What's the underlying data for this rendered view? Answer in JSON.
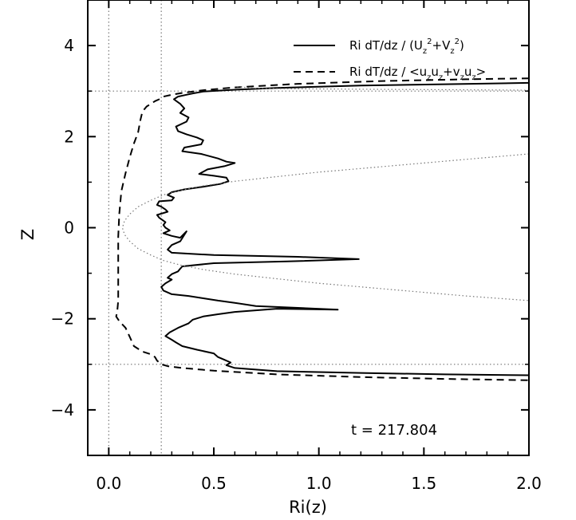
{
  "chart_data": {
    "type": "line",
    "xlabel": "Ri(z)",
    "ylabel": "Z",
    "xlim": [
      -0.1,
      2.0
    ],
    "ylim": [
      -5,
      5
    ],
    "x_ticks": [
      0.0,
      0.5,
      1.0,
      1.5,
      2.0
    ],
    "x_tick_labels": [
      "0.0",
      "0.5",
      "1.0",
      "1.5",
      "2.0"
    ],
    "y_ticks": [
      -4,
      -2,
      0,
      2,
      4
    ],
    "y_tick_labels": [
      "−4",
      "−2",
      "0",
      "2",
      "4"
    ],
    "grid": false,
    "legend_position": "top-right",
    "annotation": "t = 217.804",
    "legend": {
      "solid": {
        "prefix": "Ri dT/dz / (U",
        "mid": "+V",
        "suffix": ")",
        "sub": "z",
        "sup": "2"
      },
      "dashed": {
        "prefix": "Ri dT/dz / <u",
        "p2": "u",
        "p3": "+v",
        "p4": "u",
        "suffix": ">",
        "sub": "z"
      }
    },
    "reference_lines": {
      "vertical": [
        0.0,
        0.25
      ],
      "horizontal": [
        3.0,
        -3.0
      ]
    },
    "series": [
      {
        "name": "Ri dT/dz / (Uz²+Vz²)",
        "style": "solid",
        "points": [
          [
            2.0,
            3.18
          ],
          [
            1.6,
            3.15
          ],
          [
            1.2,
            3.12
          ],
          [
            0.8,
            3.07
          ],
          [
            0.6,
            3.03
          ],
          [
            0.45,
            2.99
          ],
          [
            0.4,
            2.95
          ],
          [
            0.37,
            2.92
          ],
          [
            0.33,
            2.88
          ],
          [
            0.31,
            2.82
          ],
          [
            0.34,
            2.72
          ],
          [
            0.36,
            2.62
          ],
          [
            0.34,
            2.52
          ],
          [
            0.38,
            2.42
          ],
          [
            0.37,
            2.33
          ],
          [
            0.32,
            2.22
          ],
          [
            0.33,
            2.12
          ],
          [
            0.37,
            2.05
          ],
          [
            0.42,
            1.98
          ],
          [
            0.45,
            1.92
          ],
          [
            0.44,
            1.83
          ],
          [
            0.36,
            1.76
          ],
          [
            0.35,
            1.68
          ],
          [
            0.44,
            1.62
          ],
          [
            0.52,
            1.52
          ],
          [
            0.56,
            1.45
          ],
          [
            0.6,
            1.42
          ],
          [
            0.55,
            1.35
          ],
          [
            0.47,
            1.28
          ],
          [
            0.43,
            1.18
          ],
          [
            0.5,
            1.14
          ],
          [
            0.56,
            1.1
          ],
          [
            0.57,
            1.02
          ],
          [
            0.53,
            0.96
          ],
          [
            0.45,
            0.9
          ],
          [
            0.36,
            0.84
          ],
          [
            0.3,
            0.78
          ],
          [
            0.28,
            0.72
          ],
          [
            0.31,
            0.66
          ],
          [
            0.3,
            0.6
          ],
          [
            0.24,
            0.58
          ],
          [
            0.23,
            0.5
          ],
          [
            0.25,
            0.46
          ],
          [
            0.27,
            0.4
          ],
          [
            0.28,
            0.35
          ],
          [
            0.23,
            0.28
          ],
          [
            0.24,
            0.22
          ],
          [
            0.27,
            0.12
          ],
          [
            0.26,
            0.06
          ],
          [
            0.27,
            0.0
          ],
          [
            0.29,
            -0.06
          ],
          [
            0.26,
            -0.12
          ],
          [
            0.3,
            -0.18
          ],
          [
            0.34,
            -0.22
          ],
          [
            0.37,
            -0.08
          ],
          [
            0.34,
            -0.3
          ],
          [
            0.3,
            -0.38
          ],
          [
            0.28,
            -0.48
          ],
          [
            0.3,
            -0.55
          ],
          [
            0.5,
            -0.6
          ],
          [
            0.9,
            -0.64
          ],
          [
            1.19,
            -0.69
          ],
          [
            0.85,
            -0.74
          ],
          [
            0.5,
            -0.78
          ],
          [
            0.35,
            -0.85
          ],
          [
            0.34,
            -0.9
          ],
          [
            0.33,
            -0.96
          ],
          [
            0.3,
            -1.02
          ],
          [
            0.28,
            -1.1
          ],
          [
            0.3,
            -1.14
          ],
          [
            0.27,
            -1.22
          ],
          [
            0.25,
            -1.3
          ],
          [
            0.26,
            -1.38
          ],
          [
            0.3,
            -1.46
          ],
          [
            0.38,
            -1.5
          ],
          [
            0.45,
            -1.55
          ],
          [
            0.52,
            -1.6
          ],
          [
            0.6,
            -1.65
          ],
          [
            0.7,
            -1.72
          ],
          [
            0.9,
            -1.76
          ],
          [
            1.09,
            -1.8
          ],
          [
            0.8,
            -1.78
          ],
          [
            0.6,
            -1.85
          ],
          [
            0.52,
            -1.9
          ],
          [
            0.45,
            -1.95
          ],
          [
            0.4,
            -2.02
          ],
          [
            0.38,
            -2.1
          ],
          [
            0.33,
            -2.2
          ],
          [
            0.29,
            -2.3
          ],
          [
            0.27,
            -2.38
          ],
          [
            0.3,
            -2.46
          ],
          [
            0.32,
            -2.52
          ],
          [
            0.35,
            -2.6
          ],
          [
            0.42,
            -2.68
          ],
          [
            0.5,
            -2.76
          ],
          [
            0.52,
            -2.84
          ],
          [
            0.55,
            -2.9
          ],
          [
            0.58,
            -2.96
          ],
          [
            0.56,
            -3.02
          ],
          [
            0.6,
            -3.08
          ],
          [
            0.8,
            -3.15
          ],
          [
            1.2,
            -3.19
          ],
          [
            1.6,
            -3.22
          ],
          [
            2.0,
            -3.24
          ]
        ]
      },
      {
        "name": "Ri dT/dz / <uzuz+vzuz>",
        "style": "dashed",
        "points": [
          [
            2.0,
            3.28
          ],
          [
            1.7,
            3.26
          ],
          [
            1.3,
            3.22
          ],
          [
            0.9,
            3.16
          ],
          [
            0.6,
            3.08
          ],
          [
            0.45,
            3.02
          ],
          [
            0.35,
            2.96
          ],
          [
            0.3,
            2.92
          ],
          [
            0.26,
            2.88
          ],
          [
            0.24,
            2.82
          ],
          [
            0.22,
            2.78
          ],
          [
            0.2,
            2.72
          ],
          [
            0.18,
            2.66
          ],
          [
            0.16,
            2.55
          ],
          [
            0.15,
            2.35
          ],
          [
            0.14,
            2.1
          ],
          [
            0.12,
            1.85
          ],
          [
            0.1,
            1.55
          ],
          [
            0.08,
            1.2
          ],
          [
            0.06,
            0.8
          ],
          [
            0.05,
            0.3
          ],
          [
            0.045,
            -0.2
          ],
          [
            0.045,
            -0.7
          ],
          [
            0.045,
            -1.2
          ],
          [
            0.045,
            -1.6
          ],
          [
            0.04,
            -1.85
          ],
          [
            0.035,
            -1.95
          ],
          [
            0.05,
            -2.05
          ],
          [
            0.08,
            -2.2
          ],
          [
            0.1,
            -2.4
          ],
          [
            0.12,
            -2.6
          ],
          [
            0.16,
            -2.72
          ],
          [
            0.2,
            -2.78
          ],
          [
            0.22,
            -2.84
          ],
          [
            0.23,
            -2.92
          ],
          [
            0.25,
            -3.0
          ],
          [
            0.28,
            -3.04
          ],
          [
            0.35,
            -3.08
          ],
          [
            0.5,
            -3.14
          ],
          [
            0.8,
            -3.22
          ],
          [
            1.2,
            -3.28
          ],
          [
            1.6,
            -3.32
          ],
          [
            2.0,
            -3.35
          ]
        ]
      },
      {
        "name": "",
        "style": "dotted",
        "points": [
          [
            2.0,
            1.62
          ],
          [
            1.7,
            1.5
          ],
          [
            1.4,
            1.38
          ],
          [
            1.2,
            1.3
          ],
          [
            1.0,
            1.22
          ],
          [
            0.8,
            1.12
          ],
          [
            0.6,
            1.02
          ],
          [
            0.45,
            0.92
          ],
          [
            0.34,
            0.82
          ],
          [
            0.26,
            0.72
          ],
          [
            0.2,
            0.6
          ],
          [
            0.14,
            0.46
          ],
          [
            0.1,
            0.3
          ],
          [
            0.075,
            0.15
          ],
          [
            0.065,
            0.0
          ],
          [
            0.075,
            -0.15
          ],
          [
            0.1,
            -0.3
          ],
          [
            0.14,
            -0.46
          ],
          [
            0.2,
            -0.6
          ],
          [
            0.26,
            -0.72
          ],
          [
            0.34,
            -0.82
          ],
          [
            0.45,
            -0.92
          ],
          [
            0.6,
            -1.02
          ],
          [
            0.8,
            -1.12
          ],
          [
            1.0,
            -1.22
          ],
          [
            1.2,
            -1.3
          ],
          [
            1.4,
            -1.38
          ],
          [
            1.7,
            -1.5
          ],
          [
            2.0,
            -1.6
          ]
        ]
      },
      {
        "name": "",
        "style": "dotted",
        "points": [
          [
            2.0,
            3.02
          ],
          [
            1.6,
            3.03
          ],
          [
            1.2,
            3.04
          ],
          [
            0.9,
            3.05
          ],
          [
            0.7,
            3.06
          ],
          [
            0.6,
            3.1
          ]
        ]
      }
    ]
  }
}
